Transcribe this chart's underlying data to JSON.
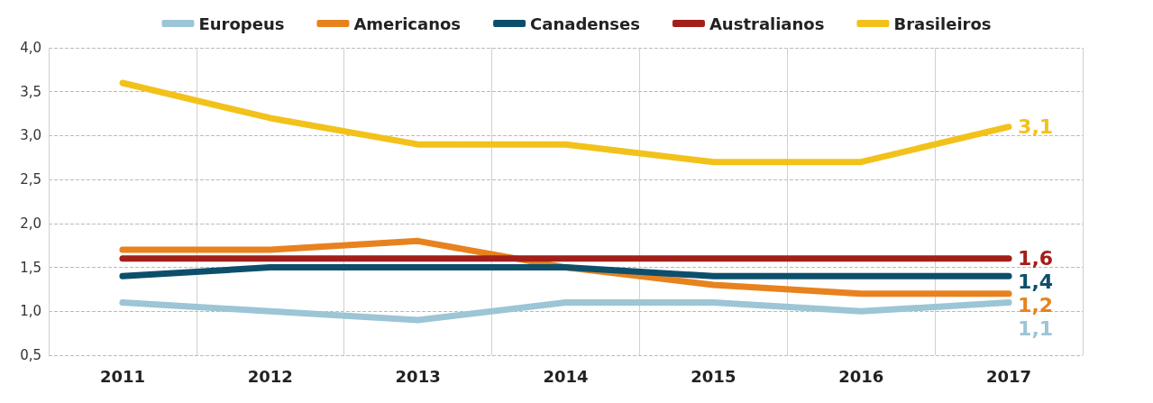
{
  "chart_data": {
    "type": "line",
    "categories": [
      "2011",
      "2012",
      "2013",
      "2014",
      "2015",
      "2016",
      "2017"
    ],
    "series": [
      {
        "name": "Europeus",
        "color": "#9cc5d6",
        "values": [
          1.1,
          1.0,
          0.9,
          1.1,
          1.1,
          1.0,
          1.1
        ],
        "value_labels": [
          null,
          null,
          null,
          null,
          null,
          null,
          "1,1"
        ]
      },
      {
        "name": "Americanos",
        "color": "#e8821e",
        "values": [
          1.7,
          1.7,
          1.8,
          1.5,
          1.3,
          1.2,
          1.2
        ],
        "value_labels": [
          null,
          null,
          null,
          null,
          null,
          null,
          "1,2"
        ]
      },
      {
        "name": "Canadenses",
        "color": "#0d4f6b",
        "values": [
          1.4,
          1.5,
          1.5,
          1.5,
          1.4,
          1.4,
          1.4
        ],
        "value_labels": [
          null,
          null,
          null,
          null,
          null,
          null,
          "1,4"
        ]
      },
      {
        "name": "Australianos",
        "color": "#a31f1a",
        "values": [
          1.6,
          1.6,
          1.6,
          1.6,
          1.6,
          1.6,
          1.6
        ],
        "value_labels": [
          null,
          null,
          null,
          null,
          null,
          null,
          "1,6"
        ]
      },
      {
        "name": "Brasileiros",
        "color": "#f2c21b",
        "values": [
          3.6,
          3.2,
          2.9,
          2.9,
          2.7,
          2.7,
          3.1
        ],
        "value_labels": [
          null,
          null,
          null,
          null,
          null,
          null,
          "3,1"
        ]
      }
    ],
    "ylim": [
      0.5,
      4.0
    ],
    "yticks": [
      {
        "value": 0.5,
        "label": "0,5"
      },
      {
        "value": 1.0,
        "label": "1,0"
      },
      {
        "value": 1.5,
        "label": "1,5"
      },
      {
        "value": 2.0,
        "label": "2,0"
      },
      {
        "value": 2.5,
        "label": "2,5"
      },
      {
        "value": 3.0,
        "label": "3,0"
      },
      {
        "value": 3.5,
        "label": "3,5"
      },
      {
        "value": 4.0,
        "label": "4,0"
      }
    ],
    "grid": true,
    "legend": "top",
    "marker": "none",
    "line_style": "solid"
  }
}
